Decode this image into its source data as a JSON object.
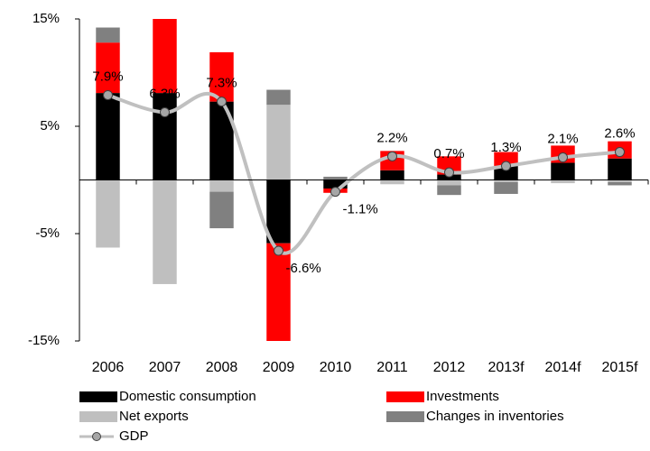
{
  "chart_data": {
    "type": "stacked-bar-line",
    "categories": [
      "2006",
      "2007",
      "2008",
      "2009",
      "2010",
      "2011",
      "2012",
      "2013f",
      "2014f",
      "2015f"
    ],
    "series": [
      {
        "name": "Domestic consumption",
        "color": "#000000",
        "values": [
          8.1,
          8.1,
          7.3,
          -5.9,
          -0.8,
          0.9,
          0.5,
          1.3,
          1.6,
          2.0
        ]
      },
      {
        "name": "Investments",
        "color": "#ff0000",
        "values": [
          4.7,
          6.9,
          4.6,
          -9.1,
          -0.4,
          1.8,
          1.7,
          1.3,
          1.6,
          1.6
        ]
      },
      {
        "name": "Net exports",
        "color": "#bfbfbf",
        "values": [
          -6.3,
          -9.7,
          -1.1,
          7.0,
          0,
          -0.4,
          -0.5,
          -0.2,
          -0.3,
          -0.2
        ]
      },
      {
        "name": "Changes in inventories",
        "color": "#808080",
        "values": [
          1.4,
          0,
          -3.4,
          1.4,
          0.3,
          0,
          -0.9,
          -1.1,
          0,
          -0.3
        ]
      },
      {
        "name": "GDP",
        "color": "#c0c0c0",
        "type": "line",
        "values": [
          7.9,
          6.3,
          7.3,
          -6.6,
          -1.1,
          2.2,
          0.7,
          1.3,
          2.1,
          2.6
        ],
        "value_labels": [
          "7.9%",
          "6.3%",
          "7.3%",
          "-6.6%",
          "-1.1%",
          "2.2%",
          "0.7%",
          "1.3%",
          "2.1%",
          "2.6%"
        ]
      }
    ],
    "ylim": [
      -15,
      15
    ],
    "yticks": [
      {
        "value": -15,
        "label": "-15%"
      },
      {
        "value": -5,
        "label": "-5%"
      },
      {
        "value": 5,
        "label": "5%"
      },
      {
        "value": 15,
        "label": "15%"
      }
    ]
  }
}
